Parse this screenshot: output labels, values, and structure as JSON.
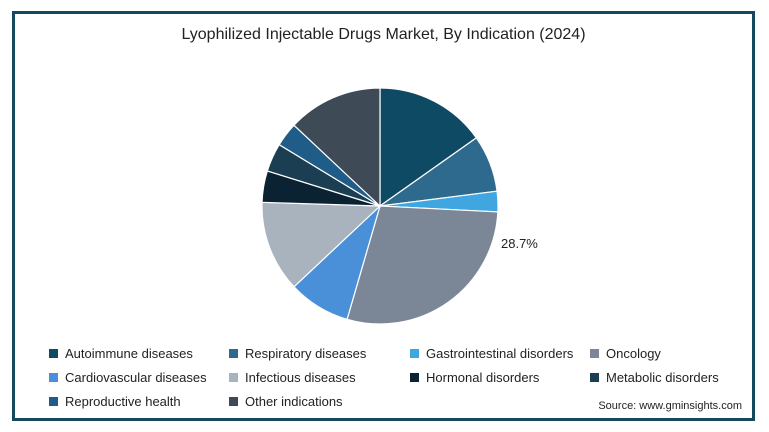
{
  "chart_data": {
    "type": "pie",
    "title": "Lyophilized Injectable Drugs Market, By Indication (2024)",
    "series": [
      {
        "name": "Autoimmune diseases",
        "value": 15.2,
        "color": "#0e4a63"
      },
      {
        "name": "Respiratory diseases",
        "value": 7.8,
        "color": "#2d6a8d"
      },
      {
        "name": "Gastrointestinal disorders",
        "value": 2.8,
        "color": "#3fa6e0"
      },
      {
        "name": "Oncology",
        "value": 28.7,
        "color": "#7b8797"
      },
      {
        "name": "Cardiovascular diseases",
        "value": 8.5,
        "color": "#4a90d9"
      },
      {
        "name": "Infectious diseases",
        "value": 12.5,
        "color": "#a9b3bd"
      },
      {
        "name": "Hormonal disorders",
        "value": 4.3,
        "color": "#0b2233"
      },
      {
        "name": "Metabolic disorders",
        "value": 3.9,
        "color": "#1b3e52"
      },
      {
        "name": "Reproductive health",
        "value": 3.3,
        "color": "#1f5c88"
      },
      {
        "name": "Other indications",
        "value": 13.0,
        "color": "#3e4b57"
      }
    ],
    "data_labels": [
      {
        "series": "Oncology",
        "text": "28.7%"
      }
    ],
    "legend_position": "bottom"
  },
  "source": "Source: www.gminsights.com"
}
